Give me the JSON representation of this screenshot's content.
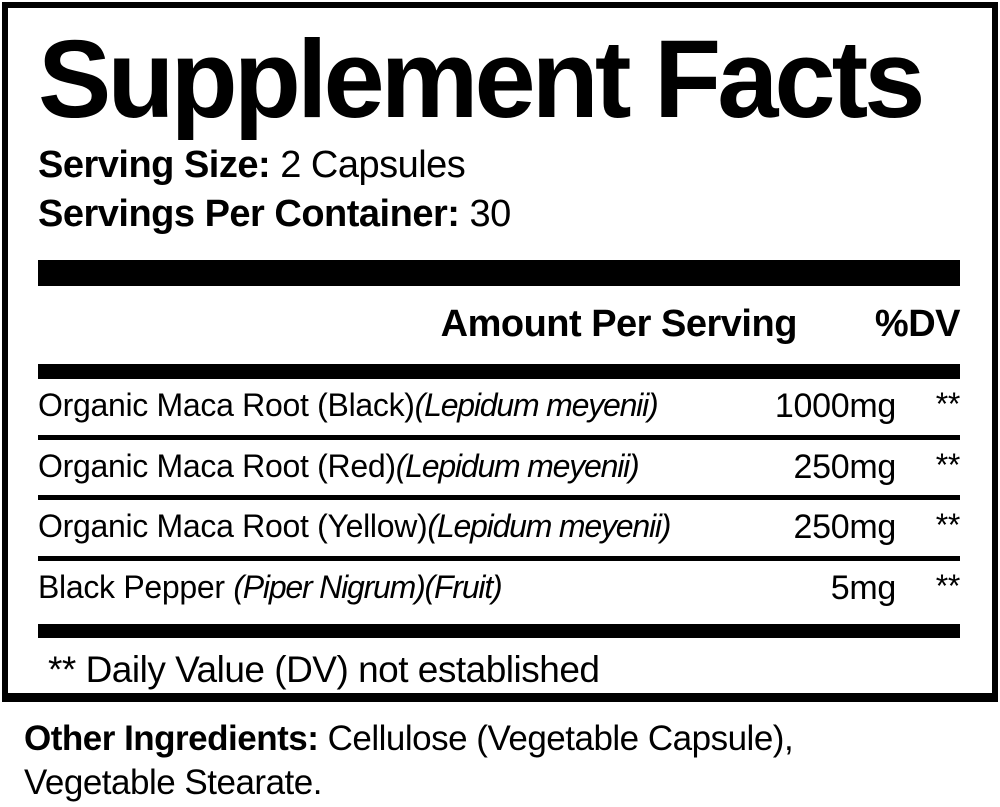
{
  "title": "Supplement Facts",
  "serving": {
    "size_label": "Serving Size:",
    "size_value": " 2 Capsules",
    "per_container_label": "Servings Per Container:",
    "per_container_value": " 30"
  },
  "table": {
    "amount_header": "Amount Per Serving",
    "dv_header": "%DV",
    "rows": [
      {
        "name": "Organic Maca Root (Black)",
        "latin": "(Lepidum meyenii)",
        "amount": "1000mg",
        "dv": "**"
      },
      {
        "name": "Organic Maca Root (Red)",
        "latin": "(Lepidum meyenii)",
        "amount": "250mg",
        "dv": "**"
      },
      {
        "name": "Organic Maca Root (Yellow)",
        "latin": "(Lepidum meyenii)",
        "amount": "250mg",
        "dv": "**"
      },
      {
        "name": "Black Pepper ",
        "latin": "(Piper Nigrum)(Fruit)",
        "amount": "5mg",
        "dv": "**"
      }
    ],
    "footnote": "** Daily Value (DV) not established"
  },
  "other_ingredients": {
    "label": "Other Ingredients:",
    "line1": " Cellulose (Vegetable Capsule),",
    "line2": "Vegetable Stearate."
  },
  "colors": {
    "ink": "#000000",
    "background": "#ffffff"
  }
}
